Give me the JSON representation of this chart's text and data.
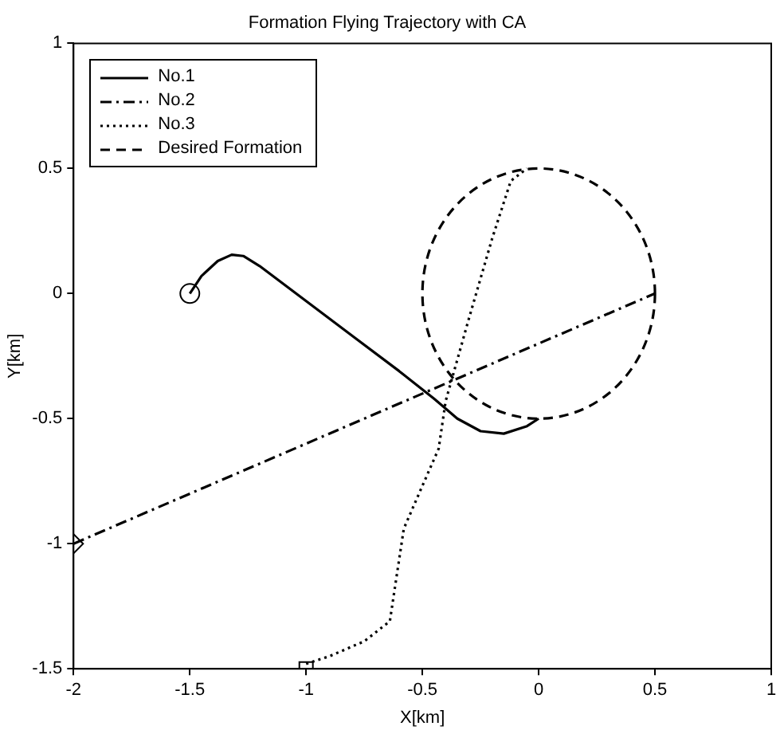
{
  "chart_data": {
    "type": "line",
    "title": "Formation Flying Trajectory with CA",
    "xlabel": "X[km]",
    "ylabel": "Y[km]",
    "xlim": [
      -2,
      1
    ],
    "xticks": [
      -2,
      -1.5,
      -1,
      -0.5,
      0,
      0.5,
      1
    ],
    "ylim": [
      -1.5,
      1
    ],
    "yticks": [
      -1.5,
      -1,
      -0.5,
      0,
      0.5,
      1
    ],
    "grid": false,
    "legend": "top left",
    "annotations": [
      "Desired Formation"
    ],
    "series": [
      {
        "name": "No.1",
        "color": "#000000",
        "line_style": "solid",
        "marker": "none",
        "x": [
          -1.5,
          -1.45,
          -1.38,
          -1.32,
          -1.27,
          -1.2,
          -1.0,
          -0.8,
          -0.6,
          -0.45,
          -0.35,
          -0.25,
          -0.15,
          -0.05,
          0
        ],
        "values": [
          0,
          0.07,
          0.13,
          0.155,
          0.15,
          0.11,
          -0.03,
          -0.17,
          -0.31,
          -0.42,
          -0.5,
          -0.55,
          -0.56,
          -0.53,
          -0.5
        ]
      },
      {
        "name": "No.2",
        "color": "#000000",
        "line_style": "dashdot",
        "marker": "none",
        "x": [
          -2,
          0.5
        ],
        "values": [
          -1,
          0
        ]
      },
      {
        "name": "No.3",
        "color": "#000000",
        "line_style": "dotted",
        "marker": "none",
        "x": [
          -1,
          -0.9,
          -0.75,
          -0.64,
          -0.58,
          -0.51,
          -0.43,
          -0.4,
          -0.3,
          -0.2,
          -0.12,
          -0.05
        ],
        "values": [
          -1.48,
          -1.45,
          -1.39,
          -1.31,
          -0.94,
          -0.79,
          -0.62,
          -0.43,
          -0.1,
          0.22,
          0.45,
          0.5
        ]
      },
      {
        "type": "scatter",
        "color": "#000000",
        "marker": "circle",
        "x": [
          -1.5
        ],
        "values": [
          0
        ]
      },
      {
        "type": "scatter",
        "color": "#000000",
        "marker": "diamond",
        "x": [
          -2
        ],
        "values": [
          -1
        ]
      },
      {
        "type": "scatter",
        "color": "#000000",
        "marker": "square",
        "x": [
          -1
        ],
        "values": [
          -1.5
        ]
      }
    ]
  }
}
